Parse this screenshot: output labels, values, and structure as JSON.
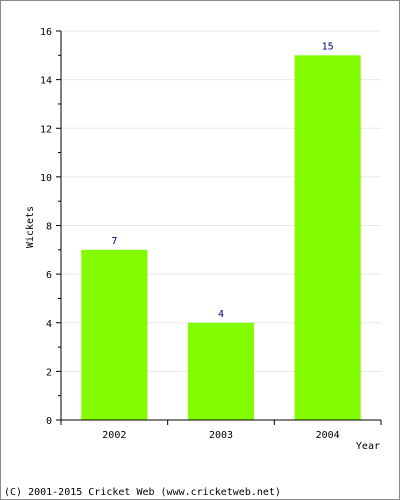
{
  "chart_data": {
    "type": "bar",
    "categories": [
      "2002",
      "2003",
      "2004"
    ],
    "values": [
      7,
      4,
      15
    ],
    "data_labels": [
      "7",
      "4",
      "15"
    ],
    "title": "",
    "xlabel": "Year",
    "ylabel": "Wickets",
    "ylim": [
      0,
      16
    ],
    "yticks": [
      0,
      2,
      4,
      6,
      8,
      10,
      12,
      14,
      16
    ],
    "grid": true,
    "legend": "none",
    "colors": {
      "bar": "#84fc00",
      "data_label": "#000080",
      "axis": "#000000",
      "grid": "#e8e8e8",
      "text": "#000000",
      "frame": "#8c8c8c"
    }
  },
  "footer": {
    "copyright": "(C) 2001-2015 Cricket Web (www.cricketweb.net)"
  }
}
